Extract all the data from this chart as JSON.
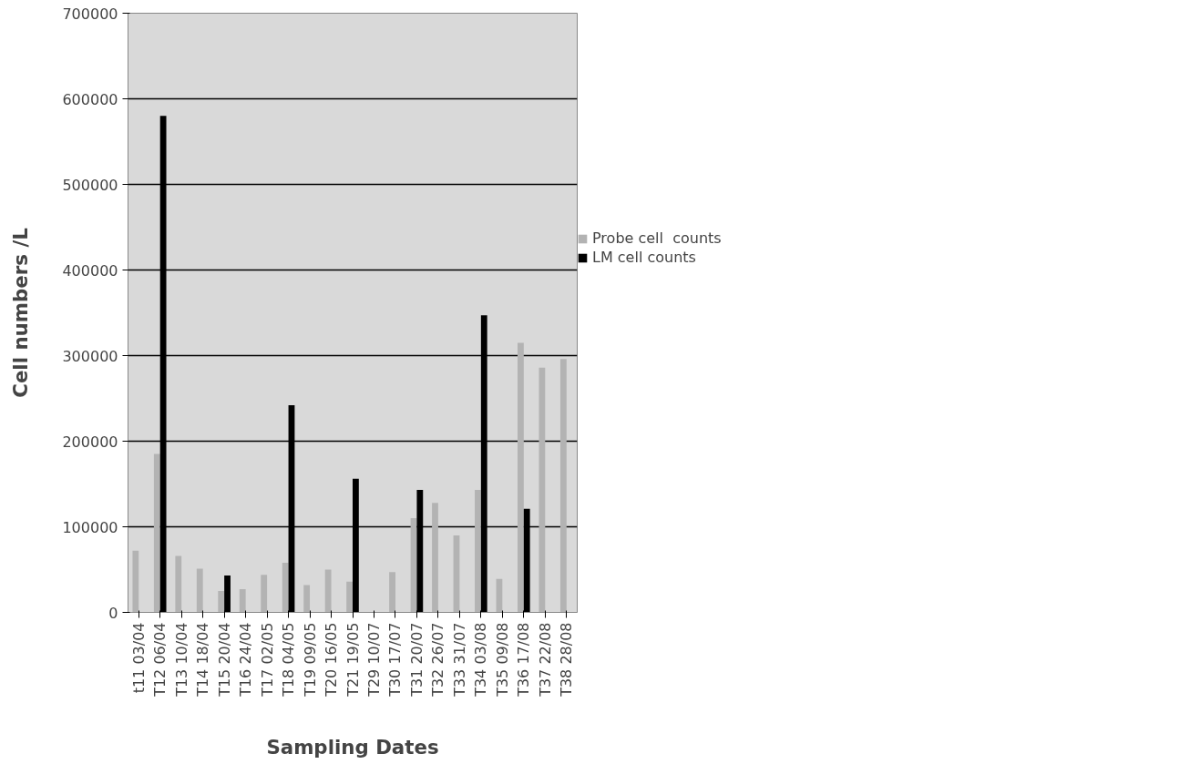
{
  "chart_data": {
    "type": "bar",
    "xlabel": "Sampling Dates",
    "ylabel": "Cell numbers /L",
    "categories": [
      "t11 03/04",
      "T12 06/04",
      "T13 10/04",
      "T14 18/04",
      "T15 20/04",
      "T16 24/04",
      "T17 02/05",
      "T18 04/05",
      "T19 09/05",
      "T20 16/05",
      "T21 19/05",
      "T29 10/07",
      "T30 17/07",
      "T31 20/07",
      "T32 26/07",
      "T33 31/07",
      "T34 03/08",
      "T35 09/08",
      "T36 17/08",
      "T37 22/08",
      "T38 28/08"
    ],
    "series": [
      {
        "name": "Probe cell  counts",
        "color": "#b3b3b3",
        "values": [
          72000,
          185000,
          66000,
          51000,
          25000,
          27000,
          44000,
          58000,
          32000,
          50000,
          36000,
          null,
          47000,
          110000,
          128000,
          90000,
          143000,
          39000,
          315000,
          286000,
          296000
        ]
      },
      {
        "name": "LM cell counts",
        "color": "#000000",
        "values": [
          null,
          580000,
          null,
          null,
          43000,
          null,
          null,
          242000,
          null,
          null,
          156000,
          null,
          null,
          143000,
          null,
          null,
          347000,
          null,
          121000,
          null,
          null
        ]
      }
    ],
    "ylim": [
      0,
      700000
    ],
    "yticks": [
      0,
      100000,
      200000,
      300000,
      400000,
      500000,
      600000,
      700000
    ],
    "grid": "y",
    "legend": "right"
  }
}
